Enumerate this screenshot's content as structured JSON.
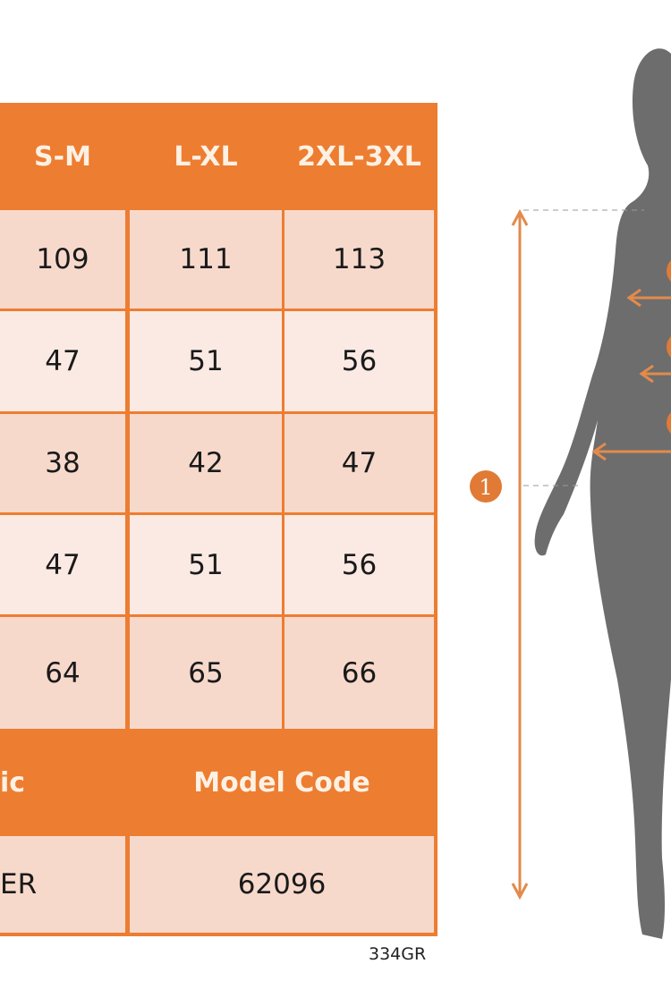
{
  "table": {
    "header": [
      "S-M",
      "L-XL",
      "2XL-3XL"
    ],
    "rows": [
      [
        "109",
        "111",
        "113"
      ],
      [
        "47",
        "51",
        "56"
      ],
      [
        "38",
        "42",
        "47"
      ],
      [
        "47",
        "51",
        "56"
      ],
      [
        "64",
        "65",
        "66"
      ]
    ],
    "info_header": [
      "ic",
      "Model Code"
    ],
    "info_values": [
      "ER",
      "62096"
    ]
  },
  "product_code": "334GR",
  "diagram": {
    "marker_1": "1"
  },
  "colors": {
    "accent": "#ed7d31",
    "row_dark": "#f7d9cc",
    "row_light": "#fbeae3",
    "silhouette": "#6d6d6d"
  }
}
